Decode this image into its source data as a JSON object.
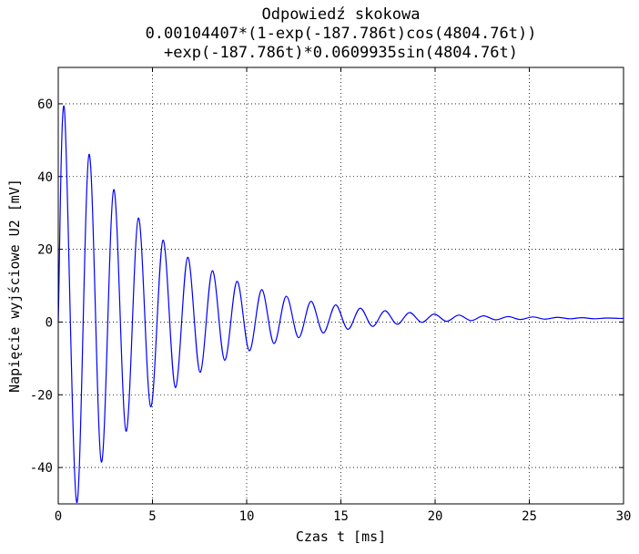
{
  "chart_data": {
    "type": "line",
    "title": "Odpowiedź skokowa",
    "subtitle_lines": [
      "0.00104407*(1-exp(-187.786t)cos(4804.76t))",
      "+exp(-187.786t)*0.0609935sin(4804.76t)"
    ],
    "xlabel": "Czas t [ms]",
    "ylabel": "Napięcie wyjściowe U2 [mV]",
    "xlim": [
      0,
      30
    ],
    "ylim": [
      -50,
      70
    ],
    "xticks": [
      0,
      5,
      10,
      15,
      20,
      25,
      30
    ],
    "yticks": [
      -40,
      -20,
      0,
      20,
      40,
      60
    ],
    "grid": true,
    "series": [
      {
        "color": "#0000ff",
        "x_unit": "ms",
        "y_unit": "mV",
        "x": [
          0,
          0.327,
          0.981,
          1.635,
          2.289,
          2.943,
          3.597,
          4.251,
          4.905,
          5.559,
          6.213,
          6.867,
          7.521,
          8.175,
          8.829,
          9.483,
          10.137,
          10.791,
          11.445,
          12.099,
          12.753,
          13.407,
          14.061,
          14.715,
          15.369,
          16.023,
          16.677,
          17.331,
          17.985,
          18.639,
          19.293,
          19.947,
          20.601,
          21.255,
          21.909,
          22.563,
          23.217,
          23.871,
          24.525,
          25.179,
          25.833,
          26.487,
          27.141,
          27.795,
          28.449,
          29.103,
          29.757,
          30
        ],
        "y": [
          0,
          58.6,
          -49.6,
          46.1,
          -38.5,
          36.4,
          -30.0,
          28.6,
          -23.3,
          22.5,
          -18.0,
          17.8,
          -13.8,
          14.1,
          -10.5,
          11.2,
          -7.9,
          8.9,
          -5.9,
          7.1,
          -4.3,
          5.7,
          -3.0,
          4.7,
          -2.0,
          3.8,
          -1.2,
          3.1,
          -0.6,
          2.6,
          -0.1,
          2.2,
          0.2,
          1.9,
          0.4,
          1.7,
          0.6,
          1.5,
          0.7,
          1.4,
          0.8,
          1.3,
          0.9,
          1.2,
          0.9,
          1.1,
          1.0,
          1.0
        ]
      }
    ]
  }
}
